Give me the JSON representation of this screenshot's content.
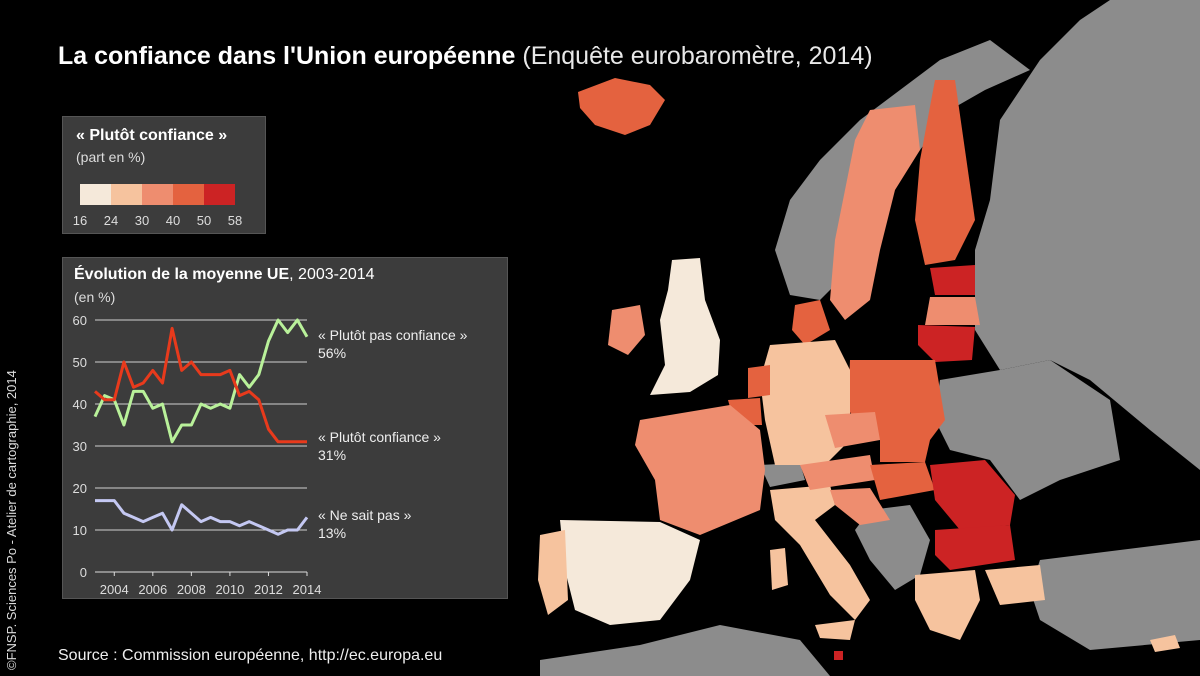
{
  "title": {
    "main": "La confiance dans l'Union européenne",
    "sub": "(Enquête eurobaromètre, 2014)"
  },
  "credit": "©FNSP. Sciences Po - Atelier de cartographie, 2014",
  "source": "Source : Commission européenne, http://ec.europa.eu",
  "colors": {
    "background": "#000000",
    "non_eu": "#8c8c8c",
    "classes": [
      "#f5e9da",
      "#f6c39e",
      "#ee8d6f",
      "#e4623f",
      "#cc2324"
    ],
    "series_confiance": "#e83a1c",
    "series_pas_confiance": "#b9f19a",
    "series_ne_sait_pas": "#c4c8f2"
  },
  "legend": {
    "title": "« Plutôt confiance »",
    "subtitle": "(part en %)",
    "breaks": [
      "16",
      "24",
      "30",
      "40",
      "50",
      "58"
    ]
  },
  "chart_data": {
    "type": "line",
    "title": "Évolution de la moyenne UE",
    "title_period": ", 2003-2014",
    "ylabel": "(en %)",
    "ylim": [
      0,
      60
    ],
    "yticks": [
      "0",
      "10",
      "20",
      "30",
      "40",
      "50",
      "60"
    ],
    "xlim": [
      2003,
      2014
    ],
    "xticks": [
      "2004",
      "2006",
      "2008",
      "2010",
      "2012",
      "2014"
    ],
    "grid": true,
    "series": [
      {
        "name": "« Plutôt pas confiance »",
        "end_label": "56%",
        "color_key": "series_pas_confiance",
        "x": [
          2003,
          2003.5,
          2004,
          2004.5,
          2005,
          2005.5,
          2006,
          2006.5,
          2007,
          2007.5,
          2008,
          2008.5,
          2009,
          2009.5,
          2010,
          2010.5,
          2011,
          2011.5,
          2012,
          2012.5,
          2013,
          2013.5,
          2014
        ],
        "values": [
          37,
          42,
          41,
          35,
          43,
          43,
          39,
          40,
          31,
          35,
          35,
          40,
          39,
          40,
          39,
          47,
          44,
          47,
          55,
          60,
          57,
          60,
          56
        ]
      },
      {
        "name": "« Plutôt confiance »",
        "end_label": "31%",
        "color_key": "series_confiance",
        "x": [
          2003,
          2003.5,
          2004,
          2004.5,
          2005,
          2005.5,
          2006,
          2006.5,
          2007,
          2007.5,
          2008,
          2008.5,
          2009,
          2009.5,
          2010,
          2010.5,
          2011,
          2011.5,
          2012,
          2012.5,
          2013,
          2013.5,
          2014
        ],
        "values": [
          43,
          41,
          41,
          50,
          44,
          45,
          48,
          45,
          58,
          48,
          50,
          47,
          47,
          47,
          48,
          42,
          43,
          41,
          34,
          31,
          31,
          31,
          31
        ]
      },
      {
        "name": "« Ne sait pas »",
        "end_label": "13%",
        "color_key": "series_ne_sait_pas",
        "x": [
          2003,
          2003.5,
          2004,
          2004.5,
          2005,
          2005.5,
          2006,
          2006.5,
          2007,
          2007.5,
          2008,
          2008.5,
          2009,
          2009.5,
          2010,
          2010.5,
          2011,
          2011.5,
          2012,
          2012.5,
          2013,
          2013.5,
          2014
        ],
        "values": [
          17,
          17,
          17,
          14,
          13,
          12,
          13,
          14,
          10,
          16,
          14,
          12,
          13,
          12,
          12,
          11,
          12,
          11,
          10,
          9,
          10,
          10,
          13
        ]
      }
    ]
  }
}
